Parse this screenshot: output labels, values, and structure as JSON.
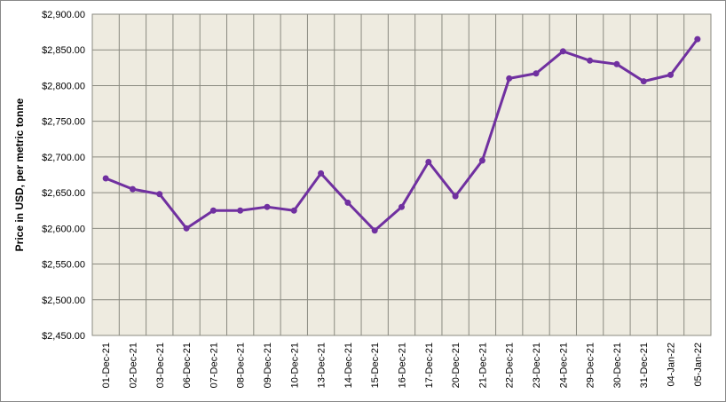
{
  "chart_data": {
    "type": "line",
    "y_label": "Price in USD, per metric tonne",
    "categories": [
      "01-Dec-21",
      "02-Dec-21",
      "03-Dec-21",
      "06-Dec-21",
      "07-Dec-21",
      "08-Dec-21",
      "09-Dec-21",
      "10-Dec-21",
      "13-Dec-21",
      "14-Dec-21",
      "15-Dec-21",
      "16-Dec-21",
      "17-Dec-21",
      "20-Dec-21",
      "21-Dec-21",
      "22-Dec-21",
      "23-Dec-21",
      "24-Dec-21",
      "29-Dec-21",
      "30-Dec-21",
      "31-Dec-21",
      "04-Jan-22",
      "05-Jan-22"
    ],
    "values": [
      2670,
      2655,
      2648,
      2600,
      2625,
      2625,
      2630,
      2625,
      2677,
      2636,
      2597,
      2630,
      2693,
      2645,
      2695,
      2810,
      2817,
      2848,
      2835,
      2830,
      2806,
      2815,
      2865
    ],
    "color": "#7030a0",
    "ylim": [
      2450,
      2900
    ],
    "yticks": [
      {
        "value": 2450,
        "label": "$2,450.00"
      },
      {
        "value": 2500,
        "label": "$2,500.00"
      },
      {
        "value": 2550,
        "label": "$2,550.00"
      },
      {
        "value": 2600,
        "label": "$2,600.00"
      },
      {
        "value": 2650,
        "label": "$2,650.00"
      },
      {
        "value": 2700,
        "label": "$2,700.00"
      },
      {
        "value": 2750,
        "label": "$2,750.00"
      },
      {
        "value": 2800,
        "label": "$2,800.00"
      },
      {
        "value": 2850,
        "label": "$2,850.00"
      },
      {
        "value": 2900,
        "label": "$2,900.00"
      }
    ],
    "grid": true
  }
}
